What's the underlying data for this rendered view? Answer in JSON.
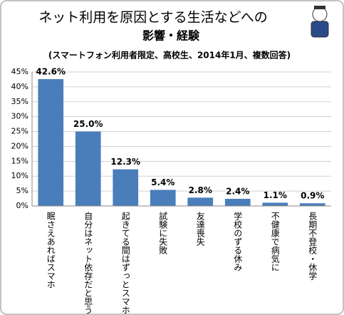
{
  "chart_data": {
    "type": "bar",
    "title": "ネット利用を原因とする生活などへの",
    "subtitle": "影響・経験",
    "note": "(スマートフォン利用者限定、高校生、2014年1月、複数回答)",
    "categories": [
      "眠さえあればスマホ",
      "自分はネット依存だと思う",
      "起きてる間はずっとスマホ",
      "試験に失敗",
      "友達喪失",
      "学校のずる休み",
      "不健康で病気に",
      "長期不登校・休学"
    ],
    "values": [
      42.6,
      25.0,
      12.3,
      5.4,
      2.8,
      2.4,
      1.1,
      0.9
    ],
    "value_labels": [
      "42.6%",
      "25.0%",
      "12.3%",
      "5.4%",
      "2.8%",
      "2.4%",
      "1.1%",
      "0.9%"
    ],
    "color": "#4a7ebb",
    "ylim": [
      0,
      45
    ],
    "yticks": [
      {
        "value": 0,
        "label": "0%"
      },
      {
        "value": 5,
        "label": "5%"
      },
      {
        "value": 10,
        "label": "10%"
      },
      {
        "value": 15,
        "label": "15%"
      },
      {
        "value": 20,
        "label": "20%"
      },
      {
        "value": 25,
        "label": "25%"
      },
      {
        "value": 30,
        "label": "30%"
      },
      {
        "value": 35,
        "label": "35%"
      },
      {
        "value": 40,
        "label": "40%"
      },
      {
        "value": 45,
        "label": "45%"
      }
    ],
    "grid": true
  }
}
